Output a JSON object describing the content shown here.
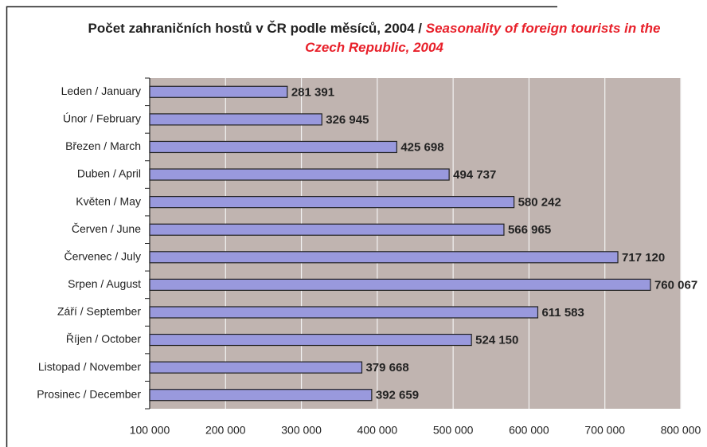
{
  "chart_data": {
    "type": "bar",
    "orientation": "horizontal",
    "title": "Počet zahraničních hostů v ČR podle měsíců, 2004 /",
    "subtitle": "Seasonality of foreign tourists in the Czech Republic, 2004",
    "categories": [
      "Leden / January",
      "Únor / February",
      "Březen / March",
      "Duben / April",
      "Květen / May",
      "Červen / June",
      "Červenec / July",
      "Srpen / August",
      "Září / September",
      "Říjen / October",
      "Listopad / November",
      "Prosinec / December"
    ],
    "values": [
      281391,
      326945,
      425698,
      494737,
      580242,
      566965,
      717120,
      760067,
      611583,
      524150,
      379668,
      392659
    ],
    "value_labels": [
      "281 391",
      "326 945",
      "425 698",
      "494 737",
      "580 242",
      "566 965",
      "717 120",
      "760 067",
      "611 583",
      "524 150",
      "379 668",
      "392 659"
    ],
    "color": "#9999dd",
    "xlim": [
      100000,
      800000
    ],
    "xticks": [
      {
        "value": 100000,
        "label": "100 000"
      },
      {
        "value": 200000,
        "label": "200 000"
      },
      {
        "value": 300000,
        "label": "300 000"
      },
      {
        "value": 400000,
        "label": "400 000"
      },
      {
        "value": 500000,
        "label": "500 000"
      },
      {
        "value": 600000,
        "label": "600 000"
      },
      {
        "value": 700000,
        "label": "700 000"
      },
      {
        "value": 800000,
        "label": "800 000"
      }
    ],
    "grid": true
  }
}
